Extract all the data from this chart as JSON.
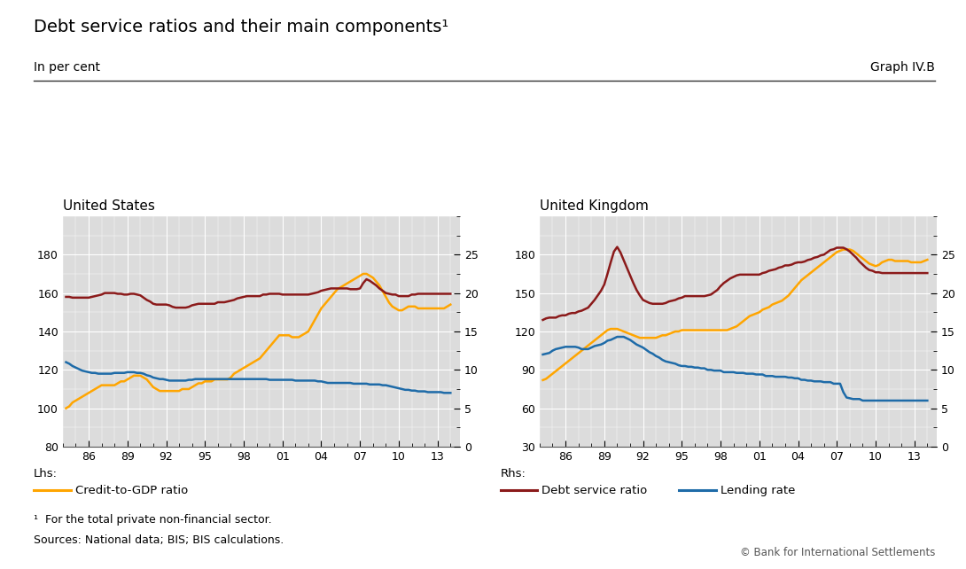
{
  "title": "Debt service ratios and their main components¹",
  "subtitle_left": "In per cent",
  "subtitle_right": "Graph IV.B",
  "footnote": "¹  For the total private non-financial sector.",
  "sources": "Sources: National data; BIS; BIS calculations.",
  "copyright": "© Bank for International Settlements",
  "us_title": "United States",
  "uk_title": "United Kingdom",
  "lhs_label": "Lhs:",
  "rhs_label": "Rhs:",
  "legend_credit": "Credit-to-GDP ratio",
  "legend_dsr": "Debt service ratio",
  "legend_lending": "Lending rate",
  "years": [
    1984.25,
    1984.5,
    1984.75,
    1985.0,
    1985.25,
    1985.5,
    1985.75,
    1986.0,
    1986.25,
    1986.5,
    1986.75,
    1987.0,
    1987.25,
    1987.5,
    1987.75,
    1988.0,
    1988.25,
    1988.5,
    1988.75,
    1989.0,
    1989.25,
    1989.5,
    1989.75,
    1990.0,
    1990.25,
    1990.5,
    1990.75,
    1991.0,
    1991.25,
    1991.5,
    1991.75,
    1992.0,
    1992.25,
    1992.5,
    1992.75,
    1993.0,
    1993.25,
    1993.5,
    1993.75,
    1994.0,
    1994.25,
    1994.5,
    1994.75,
    1995.0,
    1995.25,
    1995.5,
    1995.75,
    1996.0,
    1996.25,
    1996.5,
    1996.75,
    1997.0,
    1997.25,
    1997.5,
    1997.75,
    1998.0,
    1998.25,
    1998.5,
    1998.75,
    1999.0,
    1999.25,
    1999.5,
    1999.75,
    2000.0,
    2000.25,
    2000.5,
    2000.75,
    2001.0,
    2001.25,
    2001.5,
    2001.75,
    2002.0,
    2002.25,
    2002.5,
    2002.75,
    2003.0,
    2003.25,
    2003.5,
    2003.75,
    2004.0,
    2004.25,
    2004.5,
    2004.75,
    2005.0,
    2005.25,
    2005.5,
    2005.75,
    2006.0,
    2006.25,
    2006.5,
    2006.75,
    2007.0,
    2007.25,
    2007.5,
    2007.75,
    2008.0,
    2008.25,
    2008.5,
    2008.75,
    2009.0,
    2009.25,
    2009.5,
    2009.75,
    2010.0,
    2010.25,
    2010.5,
    2010.75,
    2011.0,
    2011.25,
    2011.5,
    2011.75,
    2012.0,
    2012.25,
    2012.5,
    2012.75,
    2013.0,
    2013.25,
    2013.5,
    2013.75,
    2014.0
  ],
  "us_credit": [
    100,
    101,
    103,
    104,
    105,
    106,
    107,
    108,
    109,
    110,
    111,
    112,
    112,
    112,
    112,
    112,
    113,
    114,
    114,
    115,
    116,
    117,
    117,
    117,
    116,
    115,
    113,
    111,
    110,
    109,
    109,
    109,
    109,
    109,
    109,
    109,
    110,
    110,
    110,
    111,
    112,
    113,
    113,
    114,
    114,
    114,
    115,
    115,
    115,
    115,
    115,
    116,
    118,
    119,
    120,
    121,
    122,
    123,
    124,
    125,
    126,
    128,
    130,
    132,
    134,
    136,
    138,
    138,
    138,
    138,
    137,
    137,
    137,
    138,
    139,
    140,
    143,
    146,
    149,
    152,
    154,
    156,
    158,
    160,
    162,
    163,
    164,
    165,
    166,
    167,
    168,
    169,
    170,
    170,
    169,
    168,
    166,
    164,
    161,
    158,
    155,
    153,
    152,
    151,
    151,
    152,
    153,
    153,
    153,
    152,
    152,
    152,
    152,
    152,
    152,
    152,
    152,
    152,
    153,
    154
  ],
  "us_dsr": [
    19.5,
    19.5,
    19.4,
    19.4,
    19.4,
    19.4,
    19.4,
    19.4,
    19.5,
    19.6,
    19.7,
    19.8,
    20.0,
    20.0,
    20.0,
    20.0,
    19.9,
    19.9,
    19.8,
    19.8,
    19.9,
    19.9,
    19.8,
    19.7,
    19.4,
    19.1,
    18.9,
    18.6,
    18.5,
    18.5,
    18.5,
    18.5,
    18.4,
    18.2,
    18.1,
    18.1,
    18.1,
    18.1,
    18.2,
    18.4,
    18.5,
    18.6,
    18.6,
    18.6,
    18.6,
    18.6,
    18.6,
    18.8,
    18.8,
    18.8,
    18.9,
    19.0,
    19.1,
    19.3,
    19.4,
    19.5,
    19.6,
    19.6,
    19.6,
    19.6,
    19.6,
    19.8,
    19.8,
    19.9,
    19.9,
    19.9,
    19.9,
    19.8,
    19.8,
    19.8,
    19.8,
    19.8,
    19.8,
    19.8,
    19.8,
    19.8,
    19.9,
    20.0,
    20.1,
    20.3,
    20.4,
    20.5,
    20.6,
    20.6,
    20.6,
    20.6,
    20.6,
    20.6,
    20.5,
    20.5,
    20.5,
    20.6,
    21.3,
    21.8,
    21.6,
    21.3,
    21.0,
    20.6,
    20.3,
    20.0,
    19.9,
    19.8,
    19.8,
    19.6,
    19.6,
    19.6,
    19.6,
    19.8,
    19.8,
    19.9,
    19.9,
    19.9,
    19.9,
    19.9,
    19.9,
    19.9,
    19.9,
    19.9,
    19.9,
    19.9
  ],
  "us_lending": [
    11.0,
    10.8,
    10.5,
    10.3,
    10.1,
    9.9,
    9.8,
    9.7,
    9.6,
    9.6,
    9.5,
    9.5,
    9.5,
    9.5,
    9.5,
    9.6,
    9.6,
    9.6,
    9.6,
    9.7,
    9.7,
    9.7,
    9.6,
    9.6,
    9.5,
    9.3,
    9.2,
    9.0,
    8.9,
    8.8,
    8.8,
    8.7,
    8.6,
    8.6,
    8.6,
    8.6,
    8.6,
    8.6,
    8.7,
    8.7,
    8.8,
    8.8,
    8.8,
    8.8,
    8.8,
    8.8,
    8.8,
    8.8,
    8.8,
    8.8,
    8.8,
    8.8,
    8.8,
    8.8,
    8.8,
    8.8,
    8.8,
    8.8,
    8.8,
    8.8,
    8.8,
    8.8,
    8.8,
    8.7,
    8.7,
    8.7,
    8.7,
    8.7,
    8.7,
    8.7,
    8.7,
    8.6,
    8.6,
    8.6,
    8.6,
    8.6,
    8.6,
    8.6,
    8.5,
    8.5,
    8.4,
    8.3,
    8.3,
    8.3,
    8.3,
    8.3,
    8.3,
    8.3,
    8.3,
    8.2,
    8.2,
    8.2,
    8.2,
    8.2,
    8.1,
    8.1,
    8.1,
    8.1,
    8.0,
    8.0,
    7.9,
    7.8,
    7.7,
    7.6,
    7.5,
    7.4,
    7.4,
    7.3,
    7.3,
    7.2,
    7.2,
    7.2,
    7.1,
    7.1,
    7.1,
    7.1,
    7.1,
    7.0,
    7.0,
    7.0
  ],
  "uk_credit": [
    82,
    83,
    85,
    87,
    89,
    91,
    93,
    95,
    97,
    99,
    101,
    103,
    105,
    107,
    109,
    111,
    113,
    115,
    117,
    119,
    121,
    122,
    122,
    122,
    121,
    120,
    119,
    118,
    117,
    116,
    115,
    115,
    115,
    115,
    115,
    115,
    116,
    117,
    117,
    118,
    119,
    120,
    120,
    121,
    121,
    121,
    121,
    121,
    121,
    121,
    121,
    121,
    121,
    121,
    121,
    121,
    121,
    121,
    122,
    123,
    124,
    126,
    128,
    130,
    132,
    133,
    134,
    135,
    137,
    138,
    139,
    141,
    142,
    143,
    144,
    146,
    148,
    151,
    154,
    157,
    160,
    162,
    164,
    166,
    168,
    170,
    172,
    174,
    176,
    178,
    180,
    182,
    183,
    184,
    184,
    184,
    183,
    181,
    179,
    177,
    175,
    173,
    172,
    171,
    172,
    174,
    175,
    176,
    176,
    175,
    175,
    175,
    175,
    175,
    174,
    174,
    174,
    174,
    175,
    176
  ],
  "uk_dsr": [
    16.5,
    16.7,
    16.8,
    16.8,
    16.8,
    17.0,
    17.1,
    17.1,
    17.3,
    17.4,
    17.4,
    17.6,
    17.7,
    17.9,
    18.1,
    18.6,
    19.1,
    19.7,
    20.3,
    21.1,
    22.5,
    24.0,
    25.4,
    26.0,
    25.3,
    24.3,
    23.3,
    22.3,
    21.3,
    20.4,
    19.7,
    19.1,
    18.9,
    18.7,
    18.6,
    18.6,
    18.6,
    18.6,
    18.7,
    18.9,
    19.0,
    19.1,
    19.3,
    19.4,
    19.6,
    19.6,
    19.6,
    19.6,
    19.6,
    19.6,
    19.6,
    19.7,
    19.8,
    20.1,
    20.4,
    20.9,
    21.3,
    21.6,
    21.9,
    22.1,
    22.3,
    22.4,
    22.4,
    22.4,
    22.4,
    22.4,
    22.4,
    22.4,
    22.6,
    22.7,
    22.9,
    23.0,
    23.1,
    23.3,
    23.4,
    23.6,
    23.6,
    23.7,
    23.9,
    24.0,
    24.0,
    24.1,
    24.3,
    24.4,
    24.6,
    24.7,
    24.9,
    25.0,
    25.3,
    25.6,
    25.7,
    25.9,
    25.9,
    25.9,
    25.7,
    25.4,
    25.0,
    24.6,
    24.1,
    23.7,
    23.3,
    23.0,
    22.9,
    22.7,
    22.7,
    22.6,
    22.6,
    22.6,
    22.6,
    22.6,
    22.6,
    22.6,
    22.6,
    22.6,
    22.6,
    22.6,
    22.6,
    22.6,
    22.6,
    22.6
  ],
  "uk_lending": [
    12.0,
    12.1,
    12.2,
    12.5,
    12.7,
    12.8,
    12.9,
    13.0,
    13.0,
    13.0,
    13.0,
    12.9,
    12.7,
    12.7,
    12.7,
    12.9,
    13.1,
    13.2,
    13.3,
    13.5,
    13.8,
    13.9,
    14.1,
    14.3,
    14.3,
    14.3,
    14.1,
    13.9,
    13.6,
    13.3,
    13.1,
    12.9,
    12.6,
    12.3,
    12.1,
    11.8,
    11.6,
    11.3,
    11.1,
    11.0,
    10.9,
    10.8,
    10.6,
    10.5,
    10.5,
    10.4,
    10.4,
    10.3,
    10.3,
    10.2,
    10.2,
    10.0,
    10.0,
    9.9,
    9.9,
    9.9,
    9.7,
    9.7,
    9.7,
    9.7,
    9.6,
    9.6,
    9.6,
    9.5,
    9.5,
    9.5,
    9.4,
    9.4,
    9.4,
    9.2,
    9.2,
    9.2,
    9.1,
    9.1,
    9.1,
    9.1,
    9.0,
    9.0,
    8.9,
    8.9,
    8.7,
    8.7,
    8.6,
    8.6,
    8.5,
    8.5,
    8.5,
    8.4,
    8.4,
    8.4,
    8.2,
    8.2,
    8.2,
    7.1,
    6.4,
    6.3,
    6.2,
    6.2,
    6.2,
    6.0,
    6.0,
    6.0,
    6.0,
    6.0,
    6.0,
    6.0,
    6.0,
    6.0,
    6.0,
    6.0,
    6.0,
    6.0,
    6.0,
    6.0,
    6.0,
    6.0,
    6.0,
    6.0,
    6.0,
    6.0
  ],
  "us_lhs_min": 80,
  "us_lhs_max": 200,
  "us_rhs_min": 0,
  "us_rhs_max": 30,
  "uk_lhs_min": 30,
  "uk_lhs_max": 210,
  "uk_rhs_min": 0,
  "uk_rhs_max": 30,
  "color_credit": "#FFA500",
  "color_dsr": "#8B1A1A",
  "color_lending": "#1E6BA8",
  "bg_color": "#DCDCDC",
  "fig_bg_color": "#FFFFFF",
  "x_tick_labels": [
    "86",
    "89",
    "92",
    "95",
    "98",
    "01",
    "04",
    "07",
    "10",
    "13"
  ],
  "x_tick_positions": [
    1986,
    1989,
    1992,
    1995,
    1998,
    2001,
    2004,
    2007,
    2010,
    2013
  ],
  "x_min": 1984.0,
  "x_max": 2014.75
}
